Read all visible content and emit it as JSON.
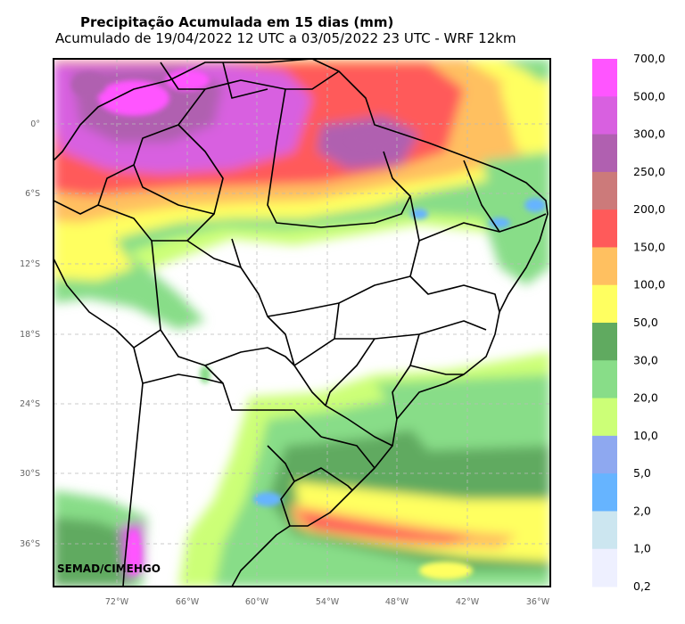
{
  "header": {
    "title": "Precipitação Acumulada em 15 dias (mm)",
    "subtitle": "Acumulado de 19/04/2022 12 UTC a 03/05/2022 23 UTC - WRF 12km"
  },
  "credit": "SEMAD/CIMEHGO",
  "lat_ticks": [
    "0°",
    "6°S",
    "12°S",
    "18°S",
    "24°S",
    "30°S",
    "36°S"
  ],
  "lon_ticks": [
    "72°W",
    "66°W",
    "60°W",
    "54°W",
    "48°W",
    "42°W",
    "36°W"
  ],
  "colorbar": {
    "labels": [
      "700,0",
      "500,0",
      "300,0",
      "250,0",
      "200,0",
      "150,0",
      "100,0",
      "50,0",
      "30,0",
      "20,0",
      "10,0",
      "5,0",
      "2,0",
      "1,0",
      "0,2"
    ],
    "colors": [
      "#ff55ff",
      "#d860e0",
      "#b060b0",
      "#cc7a7a",
      "#ff5a5a",
      "#ffc060",
      "#ffff60",
      "#60aa60",
      "#88dd88",
      "#ccff77",
      "#8ea8f0",
      "#66b4ff",
      "#cce6f0",
      "#eef0ff"
    ]
  },
  "palette": {
    "dry": "#ffffff",
    "light_green": "#ccff77",
    "green": "#88dd88",
    "dark_green": "#60aa60",
    "yellow": "#ffff60",
    "orange": "#ffc060",
    "red": "#ff5a5a",
    "magenta": "#d860e0",
    "purple": "#b060b0",
    "pink": "#ff55ff",
    "blue": "#66b4ff",
    "border": "#000000"
  }
}
